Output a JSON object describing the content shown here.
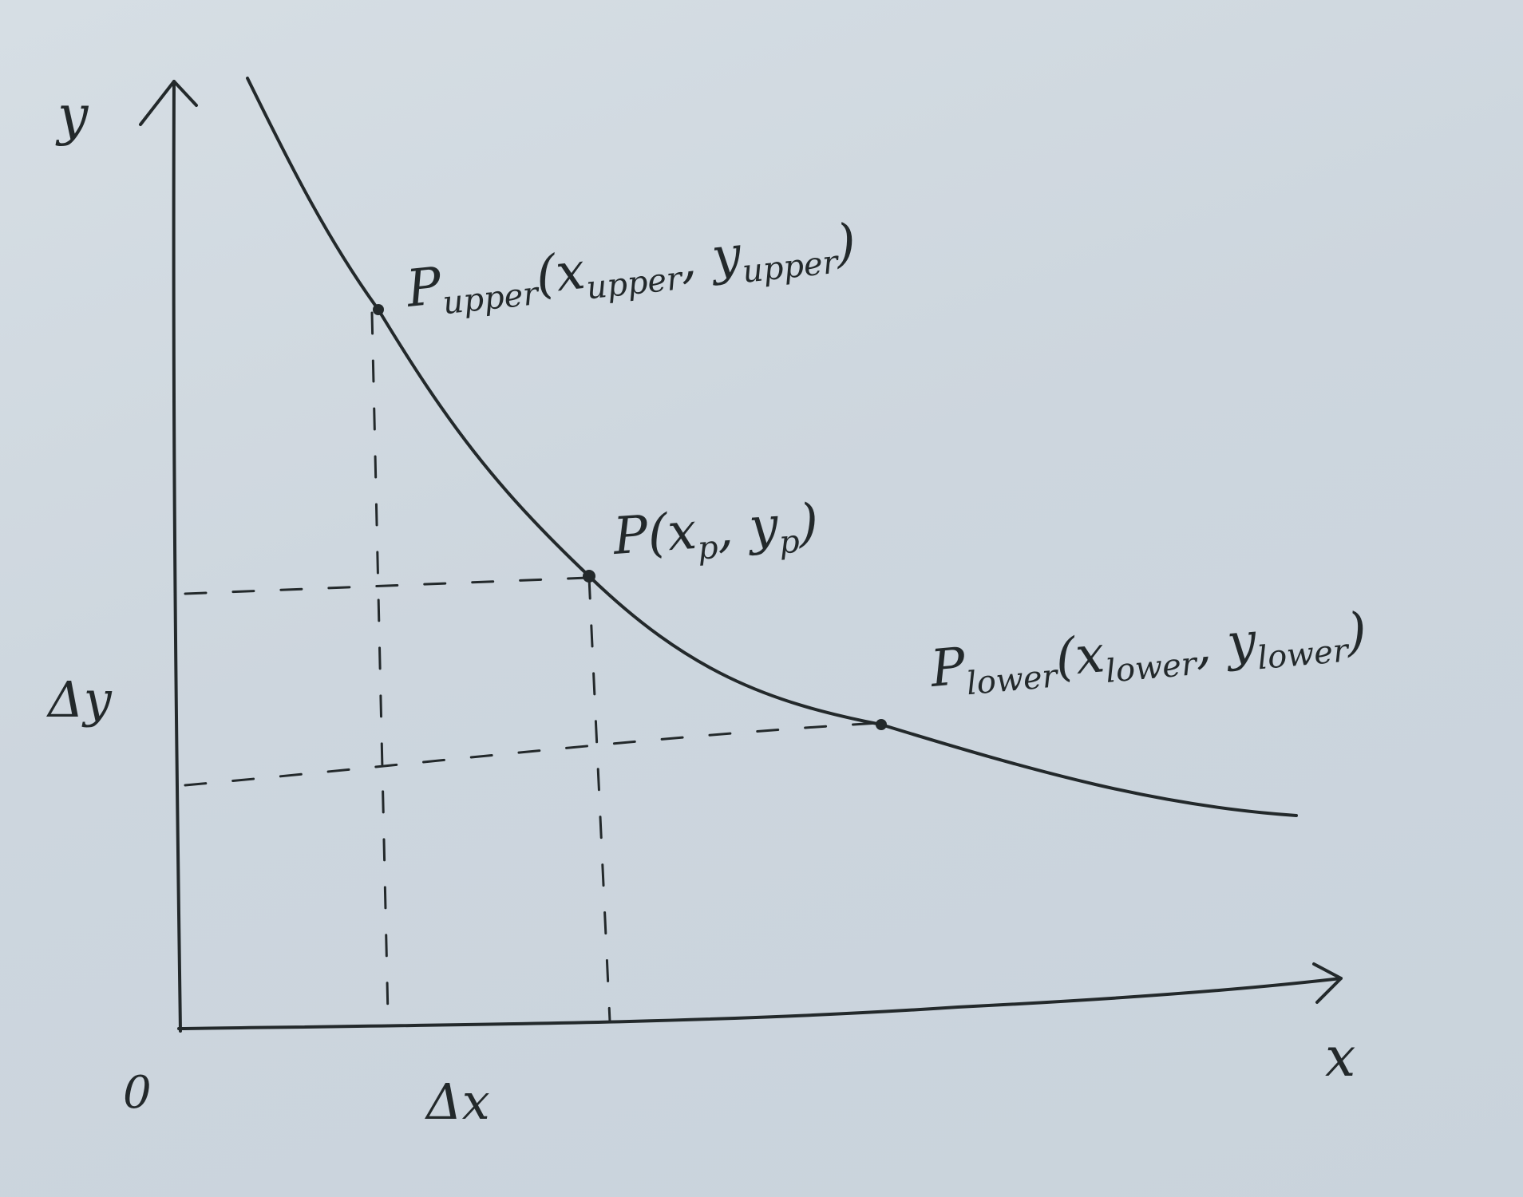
{
  "axes": {
    "x_label": "x",
    "y_label": "y",
    "origin_label": "0"
  },
  "points": {
    "upper": {
      "label": "P",
      "label_sub": "upper",
      "coord_open": "(",
      "coord_x": "x",
      "coord_x_sub": "upper",
      "coord_sep": ", ",
      "coord_y": "y",
      "coord_y_sub": "upper",
      "coord_close": ")"
    },
    "mid": {
      "label": "P",
      "coord_open": "(",
      "coord_x": "x",
      "coord_x_sub": "p",
      "coord_sep": ", ",
      "coord_y": "y",
      "coord_y_sub": "p",
      "coord_close": ")"
    },
    "lower": {
      "label": "P",
      "label_sub": "lower",
      "coord_open": "(",
      "coord_x": "x",
      "coord_x_sub": "lower",
      "coord_sep": ", ",
      "coord_y": "y",
      "coord_y_sub": "lower",
      "coord_close": ")"
    }
  },
  "deltas": {
    "dx": "Δx",
    "dy": "Δy"
  },
  "colors": {
    "ink": "#23292b",
    "paper": "#cfd8df"
  }
}
